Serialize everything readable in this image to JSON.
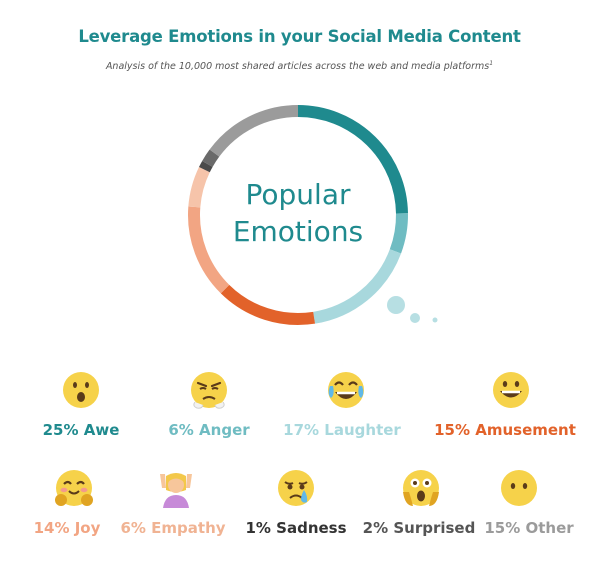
{
  "header": {
    "title": "Leverage Emotions in your Social Media Content",
    "subtitle": "Analysis of the 10,000 most shared articles across the web and media platforms",
    "subtitle_mark": "1"
  },
  "center_label": {
    "line1": "Popular",
    "line2": "Emotions"
  },
  "chart_data": {
    "type": "pie",
    "variant": "donut",
    "categories": [
      "Awe",
      "Anger",
      "Laughter",
      "Amusement",
      "Joy",
      "Empathy",
      "Sadness",
      "Surprised",
      "Other"
    ],
    "values": [
      25,
      6,
      17,
      15,
      14,
      6,
      1,
      2,
      15
    ],
    "unit": "%",
    "colors": [
      "#1f8a8e",
      "#6fbcc2",
      "#a8d8dd",
      "#e2622a",
      "#f2a583",
      "#f6c4aa",
      "#4a4a4a",
      "#6a6a6a",
      "#9b9b9b"
    ],
    "labels": [
      "25% Awe",
      "6% Anger",
      "17% Laughter",
      "15% Amusement",
      "14% Joy",
      "6% Empathy",
      "1% Sadness",
      "2% Surprised",
      "15% Other"
    ],
    "label_colors": [
      "#1f8a8e",
      "#6fbcc2",
      "#a8d8dd",
      "#e2622a",
      "#f2a583",
      "#f0b393",
      "#333333",
      "#555555",
      "#9b9b9b"
    ],
    "icons": [
      "awe-face-icon",
      "anger-face-icon",
      "laughter-face-icon",
      "amusement-face-icon",
      "joy-face-icon",
      "empathy-person-icon",
      "sadness-face-icon",
      "surprised-face-icon",
      "other-face-icon"
    ]
  }
}
